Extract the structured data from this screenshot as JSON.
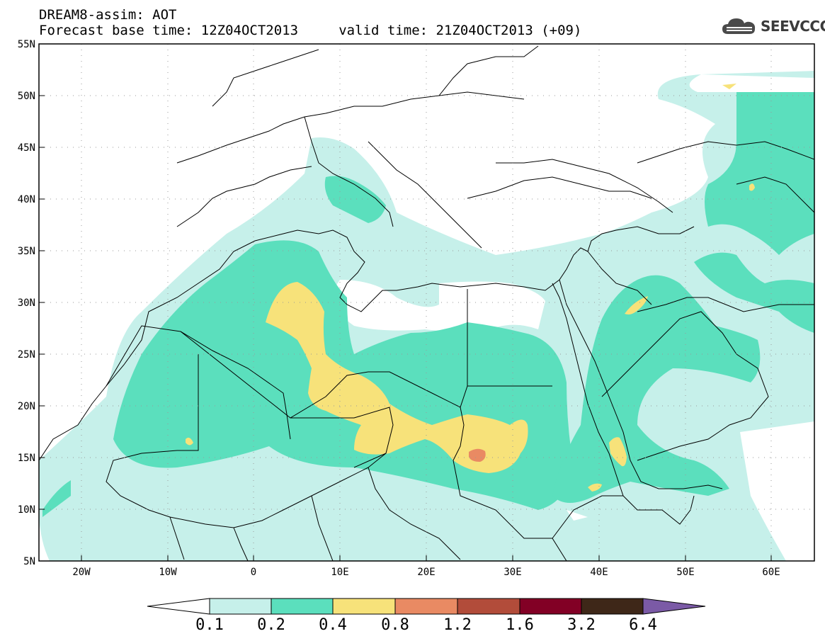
{
  "header": {
    "line1": "DREAM8-assim: AOT",
    "line2": "Forecast base time: 12Z04OCT2013     valid time: 21Z04OCT2013 (+09)"
  },
  "logo": {
    "text": "SEEVCCC",
    "icon": "cloud-icon"
  },
  "map": {
    "lat_labels": [
      "55N",
      "50N",
      "45N",
      "40N",
      "35N",
      "30N",
      "25N",
      "20N",
      "15N",
      "10N",
      "5N"
    ],
    "lon_labels": [
      "20W",
      "10W",
      "0",
      "10E",
      "20E",
      "30E",
      "40E",
      "50E",
      "60E"
    ],
    "lat_range": [
      5,
      55
    ],
    "lon_range": [
      -25,
      65
    ],
    "grid": "dotted"
  },
  "colorbar": {
    "levels": [
      "0.1",
      "0.2",
      "0.4",
      "0.8",
      "1.2",
      "1.6",
      "3.2",
      "6.4"
    ],
    "colors": [
      "#ffffff",
      "#c6f0ea",
      "#5bdfbd",
      "#f7e27a",
      "#e98a63",
      "#b24c3a",
      "#820025",
      "#3e2718",
      "#7b5aa6"
    ]
  },
  "colors": {
    "aot_0_1": "#c6f0ea",
    "aot_0_2": "#5bdfbd",
    "aot_0_4": "#f7e27a",
    "aot_0_8": "#e98a63"
  }
}
